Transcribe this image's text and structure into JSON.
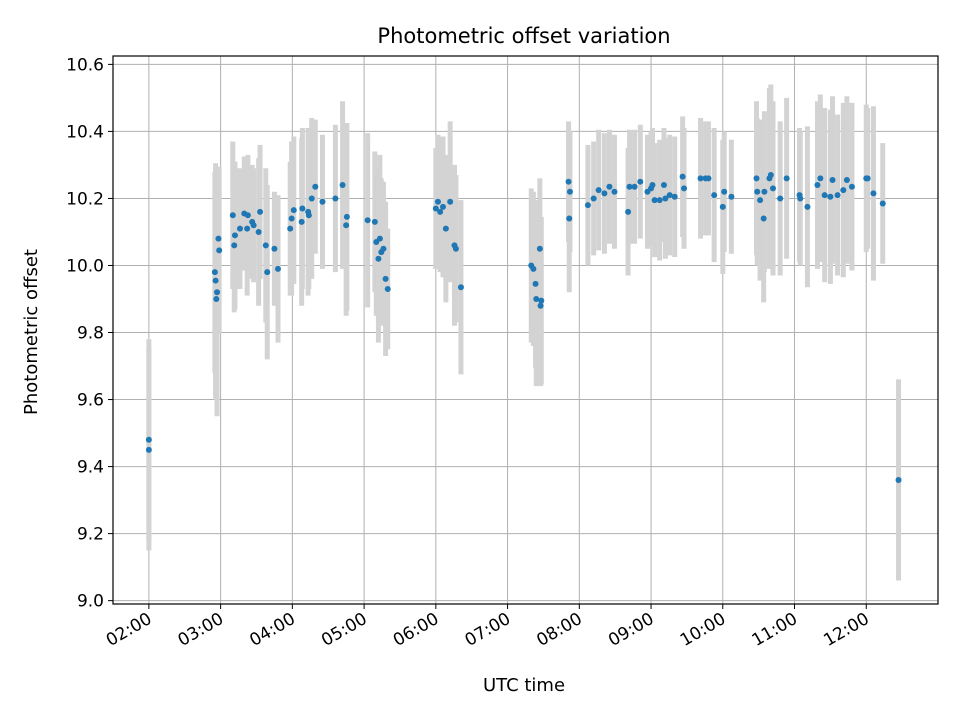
{
  "chart_data": {
    "type": "scatter",
    "title": "Photometric offset variation",
    "xlabel": "UTC time",
    "ylabel": "Photometric offset",
    "x_unit": "hours (UTC)",
    "xlim": [
      1.5,
      13.0
    ],
    "ylim": [
      8.99,
      10.625
    ],
    "x_ticks": [
      2,
      3,
      4,
      5,
      6,
      7,
      8,
      9,
      10,
      11,
      12
    ],
    "x_tick_labels": [
      "02:00",
      "03:00",
      "04:00",
      "05:00",
      "06:00",
      "07:00",
      "08:00",
      "09:00",
      "10:00",
      "11:00",
      "12:00"
    ],
    "y_ticks": [
      9.0,
      9.2,
      9.4,
      9.6,
      9.8,
      10.0,
      10.2,
      10.4,
      10.6
    ],
    "y_tick_labels": [
      "9.0",
      "9.2",
      "9.4",
      "9.6",
      "9.8",
      "10.0",
      "10.2",
      "10.4",
      "10.6"
    ],
    "grid": true,
    "marker_color": "#1f77b4",
    "errorbar_color": "#d3d3d3",
    "series": [
      {
        "points": [
          [
            2.0,
            9.48,
            0.3
          ],
          [
            2.0,
            9.45,
            0.3
          ],
          [
            2.92,
            9.98,
            0.3
          ],
          [
            2.93,
            9.955,
            0.35
          ],
          [
            2.94,
            9.9,
            0.3
          ],
          [
            2.95,
            9.92,
            0.37
          ],
          [
            2.97,
            10.08,
            0.2
          ],
          [
            2.98,
            10.045,
            0.25
          ],
          [
            3.17,
            10.15,
            0.22
          ],
          [
            3.19,
            10.06,
            0.2
          ],
          [
            3.2,
            10.09,
            0.22
          ],
          [
            3.27,
            10.11,
            0.18
          ],
          [
            3.37,
            10.11,
            0.2
          ],
          [
            3.33,
            10.155,
            0.17
          ],
          [
            3.38,
            10.15,
            0.18
          ],
          [
            3.44,
            10.13,
            0.17
          ],
          [
            3.46,
            10.12,
            0.17
          ],
          [
            3.53,
            10.1,
            0.22
          ],
          [
            3.55,
            10.16,
            0.2
          ],
          [
            3.63,
            10.06,
            0.23
          ],
          [
            3.65,
            9.98,
            0.26
          ],
          [
            3.75,
            10.05,
            0.17
          ],
          [
            3.8,
            9.99,
            0.22
          ],
          [
            3.97,
            10.11,
            0.2
          ],
          [
            3.99,
            10.14,
            0.23
          ],
          [
            4.02,
            10.165,
            0.22
          ],
          [
            4.13,
            10.13,
            0.25
          ],
          [
            4.14,
            10.17,
            0.24
          ],
          [
            4.22,
            10.16,
            0.25
          ],
          [
            4.23,
            10.15,
            0.22
          ],
          [
            4.27,
            10.2,
            0.24
          ],
          [
            4.32,
            10.235,
            0.2
          ],
          [
            4.42,
            10.19,
            0.2
          ],
          [
            4.6,
            10.2,
            0.22
          ],
          [
            4.7,
            10.24,
            0.25
          ],
          [
            4.75,
            10.12,
            0.27
          ],
          [
            4.76,
            10.145,
            0.28
          ],
          [
            5.05,
            10.135,
            0.26
          ],
          [
            5.15,
            10.13,
            0.21
          ],
          [
            5.17,
            10.07,
            0.22
          ],
          [
            5.2,
            10.02,
            0.25
          ],
          [
            5.22,
            10.08,
            0.25
          ],
          [
            5.24,
            10.04,
            0.22
          ],
          [
            5.27,
            10.05,
            0.2
          ],
          [
            5.3,
            9.96,
            0.23
          ],
          [
            5.33,
            9.93,
            0.18
          ],
          [
            6.0,
            10.17,
            0.18
          ],
          [
            6.03,
            10.19,
            0.2
          ],
          [
            6.06,
            10.16,
            0.18
          ],
          [
            6.1,
            10.175,
            0.21
          ],
          [
            6.14,
            10.11,
            0.22
          ],
          [
            6.2,
            10.19,
            0.24
          ],
          [
            6.26,
            10.06,
            0.24
          ],
          [
            6.28,
            10.05,
            0.22
          ],
          [
            6.35,
            9.935,
            0.26
          ],
          [
            7.33,
            10.0,
            0.23
          ],
          [
            7.36,
            9.99,
            0.23
          ],
          [
            7.39,
            9.945,
            0.25
          ],
          [
            7.4,
            9.9,
            0.26
          ],
          [
            7.45,
            10.05,
            0.21
          ],
          [
            7.46,
            9.88,
            0.24
          ],
          [
            7.47,
            9.895,
            0.25
          ],
          [
            7.85,
            10.25,
            0.18
          ],
          [
            7.86,
            10.14,
            0.22
          ],
          [
            7.87,
            10.22,
            0.18
          ],
          [
            8.12,
            10.18,
            0.18
          ],
          [
            8.2,
            10.2,
            0.17
          ],
          [
            8.27,
            10.225,
            0.18
          ],
          [
            8.35,
            10.215,
            0.18
          ],
          [
            8.42,
            10.235,
            0.17
          ],
          [
            8.49,
            10.22,
            0.17
          ],
          [
            8.68,
            10.16,
            0.19
          ],
          [
            8.7,
            10.235,
            0.17
          ],
          [
            8.77,
            10.235,
            0.17
          ],
          [
            8.85,
            10.25,
            0.17
          ],
          [
            8.95,
            10.22,
            0.17
          ],
          [
            9.0,
            10.23,
            0.17
          ],
          [
            9.02,
            10.24,
            0.17
          ],
          [
            9.05,
            10.195,
            0.17
          ],
          [
            9.12,
            10.195,
            0.18
          ],
          [
            9.18,
            10.24,
            0.17
          ],
          [
            9.2,
            10.2,
            0.18
          ],
          [
            9.26,
            10.21,
            0.18
          ],
          [
            9.33,
            10.205,
            0.18
          ],
          [
            9.44,
            10.265,
            0.18
          ],
          [
            9.46,
            10.23,
            0.18
          ],
          [
            9.69,
            10.26,
            0.18
          ],
          [
            9.76,
            10.26,
            0.17
          ],
          [
            9.8,
            10.26,
            0.17
          ],
          [
            9.88,
            10.21,
            0.2
          ],
          [
            10.0,
            10.175,
            0.2
          ],
          [
            10.02,
            10.22,
            0.18
          ],
          [
            10.12,
            10.205,
            0.17
          ],
          [
            10.47,
            10.26,
            0.23
          ],
          [
            10.48,
            10.22,
            0.22
          ],
          [
            10.52,
            10.195,
            0.24
          ],
          [
            10.57,
            10.14,
            0.25
          ],
          [
            10.58,
            10.22,
            0.24
          ],
          [
            10.65,
            10.26,
            0.27
          ],
          [
            10.67,
            10.27,
            0.27
          ],
          [
            10.7,
            10.23,
            0.26
          ],
          [
            10.8,
            10.2,
            0.23
          ],
          [
            10.89,
            10.26,
            0.24
          ],
          [
            11.07,
            10.21,
            0.2
          ],
          [
            11.08,
            10.2,
            0.2
          ],
          [
            11.18,
            10.175,
            0.24
          ],
          [
            11.32,
            10.24,
            0.25
          ],
          [
            11.36,
            10.26,
            0.25
          ],
          [
            11.42,
            10.21,
            0.26
          ],
          [
            11.5,
            10.205,
            0.26
          ],
          [
            11.53,
            10.255,
            0.25
          ],
          [
            11.6,
            10.21,
            0.24
          ],
          [
            11.68,
            10.225,
            0.26
          ],
          [
            11.73,
            10.255,
            0.25
          ],
          [
            11.8,
            10.235,
            0.25
          ],
          [
            12.0,
            10.26,
            0.22
          ],
          [
            12.02,
            10.26,
            0.21
          ],
          [
            12.1,
            10.215,
            0.26
          ],
          [
            12.23,
            10.185,
            0.18
          ],
          [
            12.45,
            9.36,
            0.3
          ]
        ]
      }
    ]
  }
}
